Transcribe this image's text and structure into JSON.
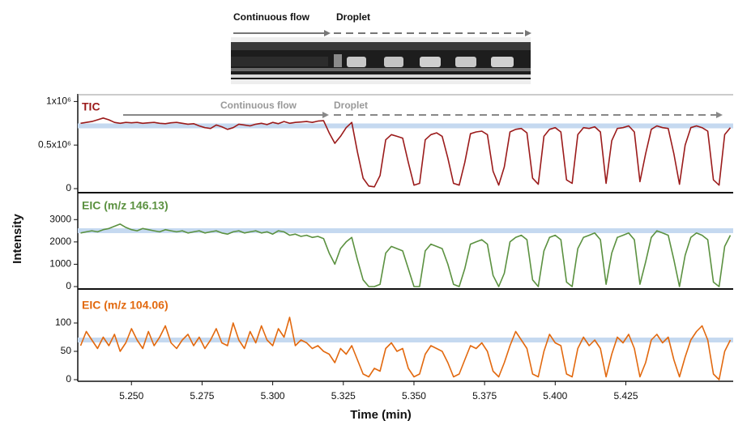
{
  "chart_data": {
    "type": "line",
    "image_labels": [
      "Continuous flow",
      "Droplet"
    ],
    "phase_labels": [
      "Continuous flow",
      "Droplet"
    ],
    "ylabel": "Intensity",
    "xlabel": "Time (min)",
    "xlim": [
      5.231,
      5.463
    ],
    "xticks": [
      {
        "value": 5.25,
        "label": "5.250"
      },
      5.275,
      {
        "value": 5.3,
        "label": "5.300"
      },
      5.325,
      {
        "value": 5.35,
        "label": "5.350"
      },
      5.375,
      {
        "value": 5.4,
        "label": "5.400"
      },
      5.425
    ],
    "x": [
      5.232,
      5.234,
      5.236,
      5.238,
      5.24,
      5.242,
      5.244,
      5.246,
      5.248,
      5.25,
      5.252,
      5.254,
      5.256,
      5.258,
      5.26,
      5.262,
      5.264,
      5.266,
      5.268,
      5.27,
      5.272,
      5.274,
      5.276,
      5.278,
      5.28,
      5.282,
      5.284,
      5.286,
      5.288,
      5.29,
      5.292,
      5.294,
      5.296,
      5.298,
      5.3,
      5.302,
      5.304,
      5.306,
      5.308,
      5.31,
      5.312,
      5.314,
      5.316,
      5.318,
      5.32,
      5.322,
      5.324,
      5.326,
      5.328,
      5.33,
      5.332,
      5.334,
      5.336,
      5.338,
      5.34,
      5.342,
      5.344,
      5.346,
      5.348,
      5.35,
      5.352,
      5.354,
      5.356,
      5.358,
      5.36,
      5.362,
      5.364,
      5.366,
      5.368,
      5.37,
      5.372,
      5.374,
      5.376,
      5.378,
      5.38,
      5.382,
      5.384,
      5.386,
      5.388,
      5.39,
      5.392,
      5.394,
      5.396,
      5.398,
      5.4,
      5.402,
      5.404,
      5.406,
      5.408,
      5.41,
      5.412,
      5.414,
      5.416,
      5.418,
      5.42,
      5.422,
      5.424,
      5.426,
      5.428,
      5.43,
      5.432,
      5.434,
      5.436,
      5.438,
      5.44,
      5.442,
      5.444,
      5.446,
      5.448,
      5.45,
      5.452,
      5.454,
      5.456,
      5.458,
      5.46,
      5.462
    ],
    "panels": [
      {
        "label": "TIC",
        "color": "#9b1b1b",
        "reference": 720000,
        "ylim": [
          0,
          1050000
        ],
        "yticks": [
          0,
          {
            "value": 500000,
            "label": "0.5x10⁶"
          },
          {
            "value": 1000000,
            "label": "1x10⁶"
          }
        ],
        "values": [
          750000,
          760000,
          770000,
          790000,
          810000,
          790000,
          760000,
          750000,
          760000,
          755000,
          760000,
          750000,
          755000,
          760000,
          750000,
          745000,
          755000,
          760000,
          750000,
          740000,
          745000,
          720000,
          700000,
          690000,
          730000,
          710000,
          680000,
          700000,
          740000,
          730000,
          720000,
          740000,
          750000,
          735000,
          760000,
          745000,
          770000,
          750000,
          760000,
          765000,
          770000,
          760000,
          775000,
          780000,
          640000,
          520000,
          600000,
          700000,
          760000,
          420000,
          120000,
          30000,
          20000,
          150000,
          560000,
          620000,
          600000,
          580000,
          300000,
          40000,
          60000,
          560000,
          620000,
          640000,
          600000,
          350000,
          60000,
          40000,
          300000,
          630000,
          650000,
          660000,
          620000,
          200000,
          40000,
          250000,
          650000,
          680000,
          690000,
          640000,
          120000,
          50000,
          600000,
          680000,
          700000,
          650000,
          100000,
          60000,
          620000,
          700000,
          690000,
          710000,
          650000,
          60000,
          550000,
          690000,
          700000,
          720000,
          650000,
          80000,
          400000,
          680000,
          720000,
          700000,
          690000,
          400000,
          50000,
          500000,
          700000,
          720000,
          700000,
          660000,
          100000,
          40000,
          620000,
          700000
        ]
      },
      {
        "label": "EIC (m/z 146.13)",
        "color": "#5b9140",
        "reference": 2500,
        "ylim": [
          0,
          3300
        ],
        "yticks": [
          0,
          1000,
          2000,
          3000
        ],
        "values": [
          2400,
          2450,
          2500,
          2450,
          2550,
          2600,
          2700,
          2800,
          2650,
          2550,
          2500,
          2600,
          2550,
          2500,
          2450,
          2550,
          2500,
          2450,
          2500,
          2400,
          2450,
          2500,
          2400,
          2450,
          2500,
          2400,
          2350,
          2450,
          2500,
          2400,
          2450,
          2500,
          2400,
          2450,
          2350,
          2500,
          2450,
          2300,
          2350,
          2250,
          2300,
          2200,
          2250,
          2150,
          1500,
          1000,
          1700,
          2000,
          2200,
          1200,
          300,
          0,
          0,
          100,
          1500,
          1800,
          1700,
          1600,
          800,
          0,
          0,
          1600,
          1900,
          1800,
          1700,
          1000,
          100,
          0,
          800,
          1900,
          2000,
          2100,
          1900,
          500,
          0,
          600,
          2000,
          2200,
          2300,
          2100,
          300,
          0,
          1600,
          2200,
          2300,
          2100,
          200,
          0,
          1700,
          2200,
          2300,
          2400,
          2100,
          100,
          1500,
          2200,
          2300,
          2400,
          2100,
          100,
          1100,
          2200,
          2500,
          2400,
          2300,
          1200,
          0,
          1400,
          2200,
          2400,
          2300,
          2100,
          200,
          0,
          1800,
          2300
        ]
      },
      {
        "label": "EIC (m/z 104.06)",
        "color": "#e2690f",
        "reference": 70,
        "ylim": [
          0,
          120
        ],
        "yticks": [
          0,
          50,
          100
        ],
        "values": [
          60,
          85,
          70,
          55,
          75,
          60,
          80,
          50,
          65,
          90,
          70,
          55,
          85,
          60,
          75,
          95,
          65,
          55,
          70,
          80,
          60,
          75,
          55,
          70,
          90,
          65,
          60,
          100,
          70,
          55,
          85,
          65,
          95,
          70,
          60,
          90,
          75,
          110,
          60,
          70,
          65,
          55,
          60,
          50,
          45,
          30,
          55,
          45,
          60,
          35,
          10,
          5,
          20,
          15,
          55,
          65,
          50,
          55,
          20,
          5,
          10,
          45,
          60,
          55,
          50,
          30,
          5,
          10,
          35,
          60,
          55,
          65,
          50,
          15,
          5,
          30,
          60,
          85,
          70,
          55,
          10,
          5,
          50,
          80,
          65,
          60,
          10,
          5,
          55,
          75,
          60,
          70,
          55,
          5,
          45,
          75,
          65,
          80,
          55,
          5,
          30,
          70,
          80,
          65,
          75,
          35,
          5,
          40,
          70,
          85,
          95,
          70,
          10,
          0,
          50,
          70
        ]
      }
    ]
  }
}
